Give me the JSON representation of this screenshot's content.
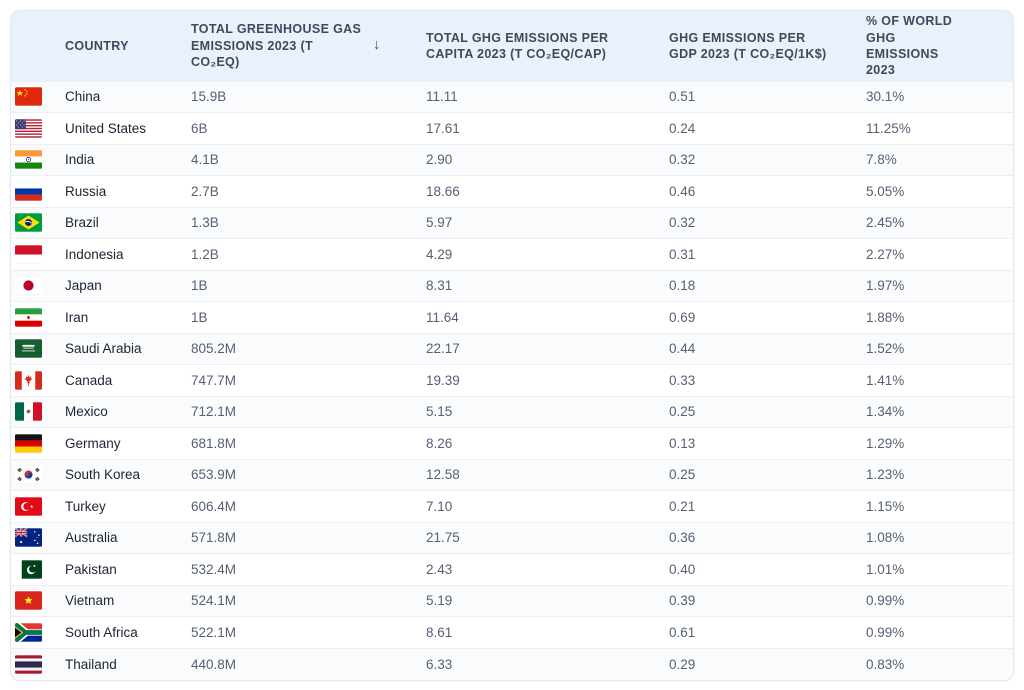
{
  "table": {
    "sort_icon": "↓",
    "sorted_column": "TOTAL GREENHOUSE GAS EMISSIONS 2023 (T CO₂EQ)",
    "sort_direction": "descending",
    "columns": [
      {
        "label": "COUNTRY"
      },
      {
        "label": "TOTAL GREENHOUSE GAS EMISSIONS 2023 (T CO₂EQ)"
      },
      {
        "label": "TOTAL GHG EMISSIONS PER CAPITA 2023 (T CO₂EQ/CAP)"
      },
      {
        "label": "GHG EMISSIONS PER GDP 2023 (T CO₂EQ/1K$)"
      },
      {
        "label": "% OF WORLD GHG EMISSIONS 2023"
      }
    ],
    "rows": [
      {
        "flag": "cn",
        "flag_icon": "china-flag-icon",
        "country": "China",
        "total": "15.9B",
        "per_capita": "11.11",
        "per_gdp": "0.51",
        "pct_world": "30.1%"
      },
      {
        "flag": "us",
        "flag_icon": "united-states-flag-icon",
        "country": "United States",
        "total": "6B",
        "per_capita": "17.61",
        "per_gdp": "0.24",
        "pct_world": "11.25%"
      },
      {
        "flag": "in",
        "flag_icon": "india-flag-icon",
        "country": "India",
        "total": "4.1B",
        "per_capita": "2.90",
        "per_gdp": "0.32",
        "pct_world": "7.8%"
      },
      {
        "flag": "ru",
        "flag_icon": "russia-flag-icon",
        "country": "Russia",
        "total": "2.7B",
        "per_capita": "18.66",
        "per_gdp": "0.46",
        "pct_world": "5.05%"
      },
      {
        "flag": "br",
        "flag_icon": "brazil-flag-icon",
        "country": "Brazil",
        "total": "1.3B",
        "per_capita": "5.97",
        "per_gdp": "0.32",
        "pct_world": "2.45%"
      },
      {
        "flag": "id",
        "flag_icon": "indonesia-flag-icon",
        "country": "Indonesia",
        "total": "1.2B",
        "per_capita": "4.29",
        "per_gdp": "0.31",
        "pct_world": "2.27%"
      },
      {
        "flag": "jp",
        "flag_icon": "japan-flag-icon",
        "country": "Japan",
        "total": "1B",
        "per_capita": "8.31",
        "per_gdp": "0.18",
        "pct_world": "1.97%"
      },
      {
        "flag": "ir",
        "flag_icon": "iran-flag-icon",
        "country": "Iran",
        "total": "1B",
        "per_capita": "11.64",
        "per_gdp": "0.69",
        "pct_world": "1.88%"
      },
      {
        "flag": "sa",
        "flag_icon": "saudi-arabia-flag-icon",
        "country": "Saudi Arabia",
        "total": "805.2M",
        "per_capita": "22.17",
        "per_gdp": "0.44",
        "pct_world": "1.52%"
      },
      {
        "flag": "ca",
        "flag_icon": "canada-flag-icon",
        "country": "Canada",
        "total": "747.7M",
        "per_capita": "19.39",
        "per_gdp": "0.33",
        "pct_world": "1.41%"
      },
      {
        "flag": "mx",
        "flag_icon": "mexico-flag-icon",
        "country": "Mexico",
        "total": "712.1M",
        "per_capita": "5.15",
        "per_gdp": "0.25",
        "pct_world": "1.34%"
      },
      {
        "flag": "de",
        "flag_icon": "germany-flag-icon",
        "country": "Germany",
        "total": "681.8M",
        "per_capita": "8.26",
        "per_gdp": "0.13",
        "pct_world": "1.29%"
      },
      {
        "flag": "kr",
        "flag_icon": "south-korea-flag-icon",
        "country": "South Korea",
        "total": "653.9M",
        "per_capita": "12.58",
        "per_gdp": "0.25",
        "pct_world": "1.23%"
      },
      {
        "flag": "tr",
        "flag_icon": "turkey-flag-icon",
        "country": "Turkey",
        "total": "606.4M",
        "per_capita": "7.10",
        "per_gdp": "0.21",
        "pct_world": "1.15%"
      },
      {
        "flag": "au",
        "flag_icon": "australia-flag-icon",
        "country": "Australia",
        "total": "571.8M",
        "per_capita": "21.75",
        "per_gdp": "0.36",
        "pct_world": "1.08%"
      },
      {
        "flag": "pk",
        "flag_icon": "pakistan-flag-icon",
        "country": "Pakistan",
        "total": "532.4M",
        "per_capita": "2.43",
        "per_gdp": "0.40",
        "pct_world": "1.01%"
      },
      {
        "flag": "vn",
        "flag_icon": "vietnam-flag-icon",
        "country": "Vietnam",
        "total": "524.1M",
        "per_capita": "5.19",
        "per_gdp": "0.39",
        "pct_world": "0.99%"
      },
      {
        "flag": "za",
        "flag_icon": "south-africa-flag-icon",
        "country": "South Africa",
        "total": "522.1M",
        "per_capita": "8.61",
        "per_gdp": "0.61",
        "pct_world": "0.99%"
      },
      {
        "flag": "th",
        "flag_icon": "thailand-flag-icon",
        "country": "Thailand",
        "total": "440.8M",
        "per_capita": "6.33",
        "per_gdp": "0.29",
        "pct_world": "0.83%"
      }
    ]
  },
  "colors": {
    "header_bg": "#e9f1fa",
    "header_text": "#3e495e",
    "country_text": "#1d2433",
    "value_text": "#555f75",
    "row_divider": "#edeff5",
    "card_border": "#e3e7ef"
  },
  "chart_data": {
    "type": "table",
    "columns": [
      "COUNTRY",
      "TOTAL GREENHOUSE GAS EMISSIONS 2023 (T CO₂EQ)",
      "TOTAL GHG EMISSIONS PER CAPITA 2023 (T CO₂EQ/CAP)",
      "GHG EMISSIONS PER GDP 2023 (T CO₂EQ/1K$)",
      "% OF WORLD GHG EMISSIONS 2023"
    ],
    "sort": {
      "column": 1,
      "direction": "descending"
    },
    "rows": [
      [
        "China",
        "15.9B",
        "11.11",
        "0.51",
        "30.1%"
      ],
      [
        "United States",
        "6B",
        "17.61",
        "0.24",
        "11.25%"
      ],
      [
        "India",
        "4.1B",
        "2.90",
        "0.32",
        "7.8%"
      ],
      [
        "Russia",
        "2.7B",
        "18.66",
        "0.46",
        "5.05%"
      ],
      [
        "Brazil",
        "1.3B",
        "5.97",
        "0.32",
        "2.45%"
      ],
      [
        "Indonesia",
        "1.2B",
        "4.29",
        "0.31",
        "2.27%"
      ],
      [
        "Japan",
        "1B",
        "8.31",
        "0.18",
        "1.97%"
      ],
      [
        "Iran",
        "1B",
        "11.64",
        "0.69",
        "1.88%"
      ],
      [
        "Saudi Arabia",
        "805.2M",
        "22.17",
        "0.44",
        "1.52%"
      ],
      [
        "Canada",
        "747.7M",
        "19.39",
        "0.33",
        "1.41%"
      ],
      [
        "Mexico",
        "712.1M",
        "5.15",
        "0.25",
        "1.34%"
      ],
      [
        "Germany",
        "681.8M",
        "8.26",
        "0.13",
        "1.29%"
      ],
      [
        "South Korea",
        "653.9M",
        "12.58",
        "0.25",
        "1.23%"
      ],
      [
        "Turkey",
        "606.4M",
        "7.10",
        "0.21",
        "1.15%"
      ],
      [
        "Australia",
        "571.8M",
        "21.75",
        "0.36",
        "1.08%"
      ],
      [
        "Pakistan",
        "532.4M",
        "2.43",
        "0.40",
        "1.01%"
      ],
      [
        "Vietnam",
        "524.1M",
        "5.19",
        "0.39",
        "0.99%"
      ],
      [
        "South Africa",
        "522.1M",
        "8.61",
        "0.61",
        "0.99%"
      ],
      [
        "Thailand",
        "440.8M",
        "6.33",
        "0.29",
        "0.83%"
      ]
    ]
  }
}
